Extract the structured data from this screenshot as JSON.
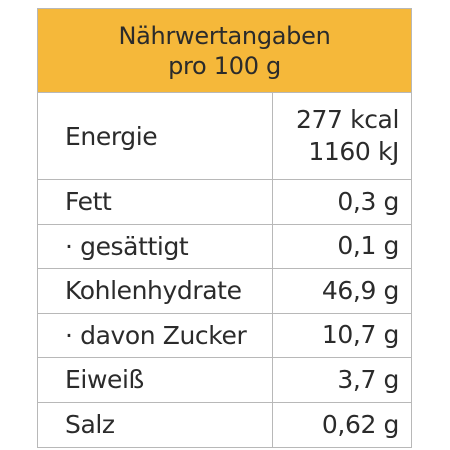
{
  "header": {
    "line1": "Nährwertangaben",
    "line2": "pro 100 g",
    "background": "#f5b83a"
  },
  "rows": [
    {
      "label": "Energie",
      "value_line1": "277 kcal",
      "value_line2": "1160 kJ"
    },
    {
      "label": "Fett",
      "value": "0,3 g"
    },
    {
      "label": "· gesättigt",
      "value": "0,1 g"
    },
    {
      "label": "Kohlenhydrate",
      "value": "46,9 g"
    },
    {
      "label": "· davon Zucker",
      "value": "10,7 g"
    },
    {
      "label": "Eiweiß",
      "value": "3,7 g"
    },
    {
      "label": "Salz",
      "value": "0,62 g"
    }
  ]
}
